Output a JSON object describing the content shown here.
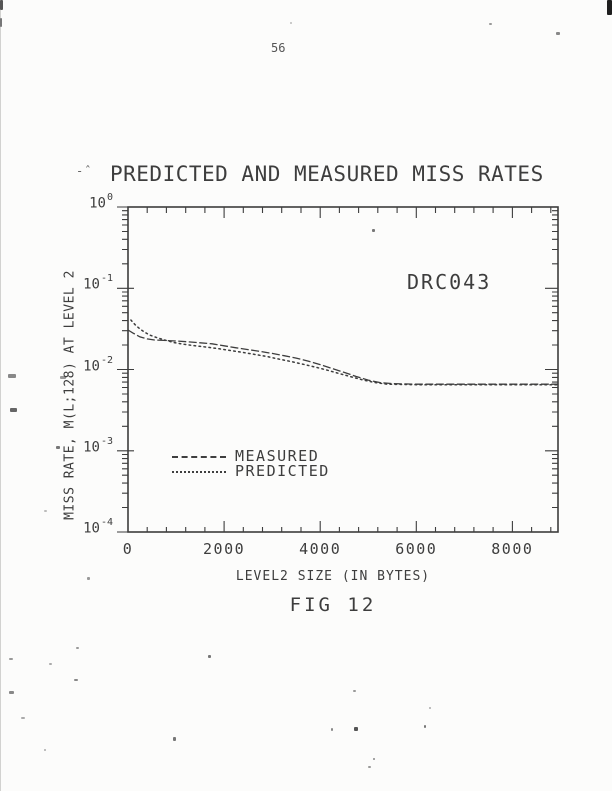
{
  "page": {
    "number": "56",
    "figure_caption": "FIG 12",
    "stray_mark": "-ˆ",
    "background": "#fcfcfb",
    "ink": "#3d3d3d"
  },
  "chart_data": {
    "type": "line",
    "title": "PREDICTED AND MEASURED MISS RATES",
    "xlabel": "LEVEL2 SIZE (IN BYTES)",
    "ylabel": "MISS RATE, M(L;128) AT LEVEL 2",
    "annotation": "DRC043",
    "x_ticks": [
      0,
      2000,
      4000,
      6000,
      8000
    ],
    "x_minor_step": 400,
    "xlim": [
      0,
      8950
    ],
    "y_scale": "log",
    "ylim": [
      0.0001,
      1
    ],
    "y_tick_values": [
      1,
      0.1,
      0.01,
      0.001,
      0.0001
    ],
    "y_tick_exponents": [
      0,
      -1,
      -2,
      -3,
      -4
    ],
    "grid": false,
    "legend_position": "inside-lower-left",
    "series": [
      {
        "name": "MEASURED",
        "style": "dashed",
        "x": [
          0,
          120,
          250,
          400,
          550,
          750,
          1000,
          1250,
          1500,
          1750,
          2000,
          2250,
          2500,
          2750,
          3000,
          3250,
          3500,
          3750,
          4000,
          4250,
          4500,
          4750,
          5000,
          5250,
          5500,
          6000,
          6500,
          7000,
          7500,
          8000,
          8500,
          8950
        ],
        "y": [
          0.0306,
          0.0277,
          0.0252,
          0.0238,
          0.0231,
          0.0228,
          0.0224,
          0.0219,
          0.0213,
          0.0207,
          0.0196,
          0.0185,
          0.0176,
          0.0167,
          0.0158,
          0.0148,
          0.0138,
          0.0127,
          0.0115,
          0.0103,
          0.0092,
          0.0082,
          0.0074,
          0.0069,
          0.0067,
          0.0066,
          0.0066,
          0.0066,
          0.0066,
          0.0066,
          0.0066,
          0.0066
        ]
      },
      {
        "name": "PREDICTED",
        "style": "dotted",
        "x": [
          60,
          150,
          250,
          350,
          450,
          600,
          750,
          950,
          1150,
          1400,
          1650,
          1900,
          2150,
          2400,
          2650,
          2900,
          3150,
          3400,
          3650,
          3900,
          4150,
          4400,
          4650,
          4900,
          5150,
          5400,
          6000,
          6500,
          7000,
          7500,
          8000,
          8500,
          8950
        ],
        "y": [
          0.0407,
          0.0355,
          0.0315,
          0.0287,
          0.0266,
          0.0247,
          0.0232,
          0.0215,
          0.0205,
          0.0196,
          0.0188,
          0.018,
          0.0171,
          0.0162,
          0.0153,
          0.0144,
          0.0134,
          0.0125,
          0.0116,
          0.0107,
          0.0098,
          0.0089,
          0.0081,
          0.0074,
          0.0069,
          0.0066,
          0.0065,
          0.0065,
          0.0065,
          0.0065,
          0.0065,
          0.0065,
          0.0065
        ]
      }
    ]
  }
}
